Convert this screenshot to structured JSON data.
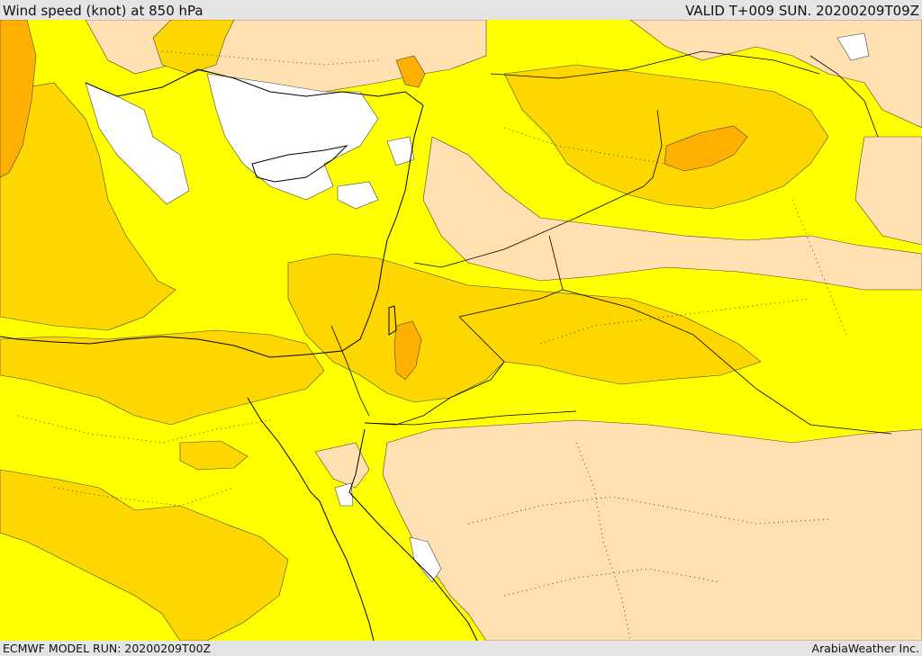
{
  "header": {
    "title": "Wind speed (knot) at 850 hPa",
    "valid_time": "VALID T+009 SUN. 20200209T09Z"
  },
  "footer": {
    "model_run": "ECMWF MODEL RUN: 20200209T00Z",
    "credit": "ArabiaWeather Inc."
  },
  "colors": {
    "calm": "#ffffff",
    "light": "#ffe0b0",
    "base": "#ffff00",
    "moderate": "#ffd700",
    "strong": "#ffb000",
    "coast": "#000000"
  }
}
